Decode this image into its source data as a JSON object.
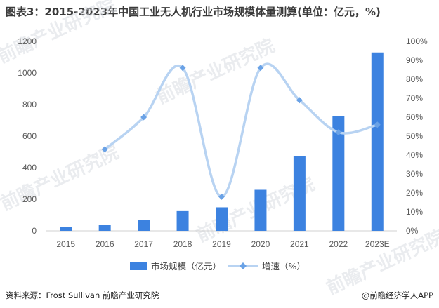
{
  "title": "图表3：2015-2023年中国工业无人机行业市场规模体量测算(单位：亿元，%)",
  "footer": {
    "source": "资料来源：Frost Sullivan 前瞻产业研究院",
    "brand": "@前瞻经济学人APP"
  },
  "watermark": "前瞻产业研究院",
  "colors": {
    "bar": "#3c82e0",
    "line": "#b8d3f2",
    "marker": "#6aa2e6"
  },
  "chart_data": {
    "type": "bar",
    "categories": [
      "2015",
      "2016",
      "2017",
      "2018",
      "2019",
      "2020",
      "2021",
      "2022",
      "2023E"
    ],
    "series": [
      {
        "name": "市场规模（亿元）",
        "type": "bar",
        "axis": "left",
        "values": [
          25,
          40,
          68,
          125,
          149,
          260,
          475,
          725,
          1130
        ]
      },
      {
        "name": "增速（%）",
        "type": "line",
        "axis": "right",
        "values": [
          null,
          43,
          60,
          86,
          18,
          86,
          69,
          52,
          56
        ]
      }
    ],
    "y_left": {
      "lim": [
        0,
        1200
      ],
      "ticks": [
        "0",
        "200",
        "400",
        "600",
        "800",
        "1000",
        "1200"
      ]
    },
    "y_right": {
      "lim": [
        0,
        100
      ],
      "ticks": [
        "0%",
        "10%",
        "20%",
        "30%",
        "40%",
        "50%",
        "60%",
        "70%",
        "80%",
        "90%",
        "100%"
      ]
    },
    "legend_position": "bottom",
    "grid": false
  }
}
